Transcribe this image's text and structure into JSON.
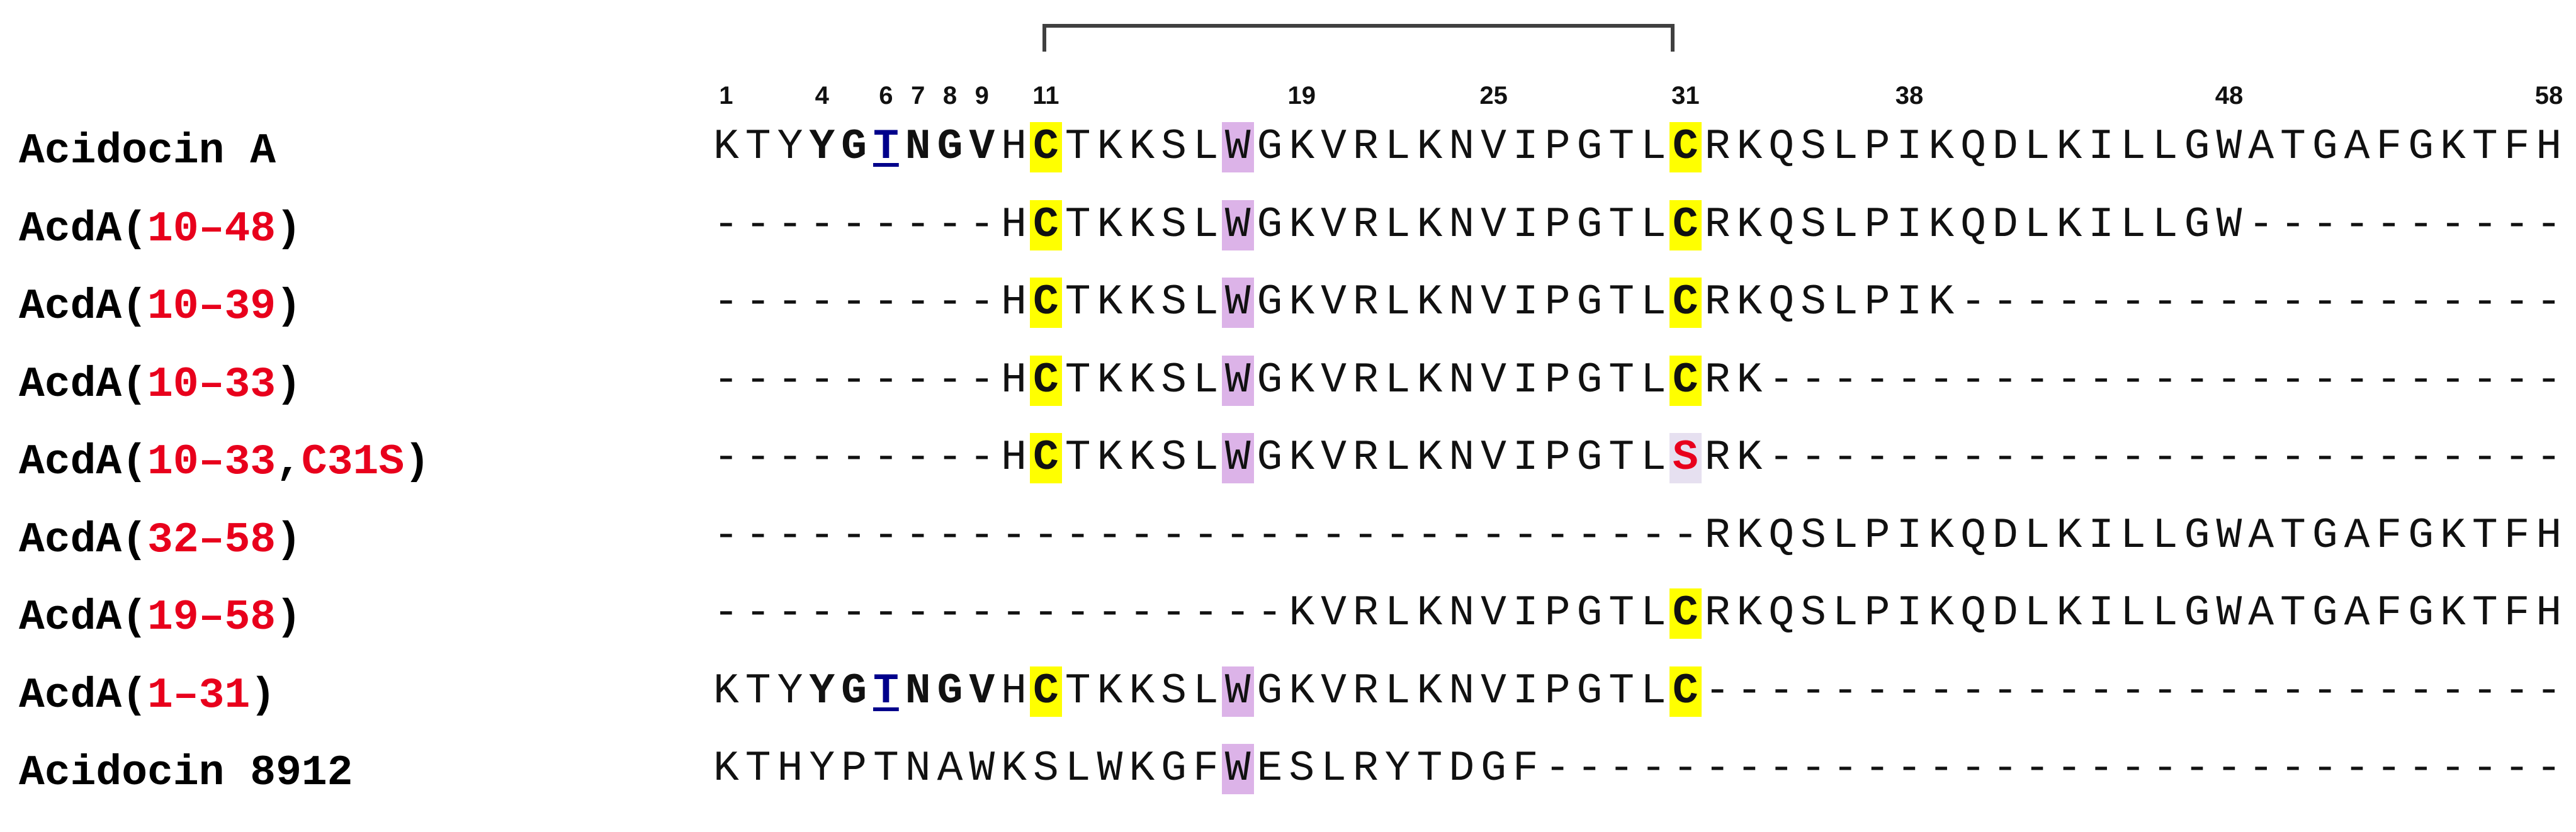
{
  "residue_numbers": [
    "1",
    "4",
    "6",
    "7",
    "8",
    "9",
    "11",
    "19",
    "25",
    "31",
    "38",
    "48",
    "58"
  ],
  "residue_number_positions": [
    1,
    4,
    6,
    7,
    8,
    9,
    11,
    19,
    25,
    31,
    38,
    48,
    58
  ],
  "highlight_colors": {
    "cysteine": "#ffff00",
    "tryptophan": "#dcb3e8",
    "substitution": "#e6e0f0",
    "label_accent": "#e8001c",
    "underlined_residue": "#00008b"
  },
  "rows": [
    {
      "label_parts": [
        {
          "text": "Acidocin A",
          "accent": false
        }
      ],
      "sequence": "KTYYGTNGVHCTKKSLWGKVRLKNVIPGTLCRKQSLPIKQDLKILLGWATGAFGKTFH",
      "marks": {
        "4": "b",
        "5": "b",
        "6": "u",
        "7": "b",
        "8": "b",
        "9": "b",
        "11": "cys",
        "17": "trp",
        "31": "cys"
      }
    },
    {
      "label_parts": [
        {
          "text": "AcdA(",
          "accent": false
        },
        {
          "text": "10–48",
          "accent": true
        },
        {
          "text": ")",
          "accent": false
        }
      ],
      "sequence": "---------HCTKKSLWGKVRLKNVIPGTLCRKQSLPIKQDLKILLGW----------",
      "marks": {
        "11": "cys",
        "17": "trp",
        "31": "cys"
      }
    },
    {
      "label_parts": [
        {
          "text": "AcdA(",
          "accent": false
        },
        {
          "text": "10–39",
          "accent": true
        },
        {
          "text": ")",
          "accent": false
        }
      ],
      "sequence": "---------HCTKKSLWGKVRLKNVIPGTLCRKQSLPIK-------------------",
      "marks": {
        "11": "cys",
        "17": "trp",
        "31": "cys"
      }
    },
    {
      "label_parts": [
        {
          "text": "AcdA(",
          "accent": false
        },
        {
          "text": "10–33",
          "accent": true
        },
        {
          "text": ")",
          "accent": false
        }
      ],
      "sequence": "---------HCTKKSLWGKVRLKNVIPGTLCRK-------------------------",
      "marks": {
        "11": "cys",
        "17": "trp",
        "31": "cys"
      }
    },
    {
      "label_parts": [
        {
          "text": "AcdA(",
          "accent": false
        },
        {
          "text": "10–33",
          "accent": true
        },
        {
          "text": ",",
          "accent": false
        },
        {
          "text": "C31S",
          "accent": true
        },
        {
          "text": ")",
          "accent": false
        }
      ],
      "sequence": "---------HCTKKSLWGKVRLKNVIPGTLSRK-------------------------",
      "marks": {
        "11": "cys",
        "17": "trp",
        "31": "sub"
      }
    },
    {
      "label_parts": [
        {
          "text": "AcdA(",
          "accent": false
        },
        {
          "text": "32–58",
          "accent": true
        },
        {
          "text": ")",
          "accent": false
        }
      ],
      "sequence": "-------------------------------RKQSLPIKQDLKILLGWATGAFGKTFH",
      "marks": {}
    },
    {
      "label_parts": [
        {
          "text": "AcdA(",
          "accent": false
        },
        {
          "text": "19–58",
          "accent": true
        },
        {
          "text": ")",
          "accent": false
        }
      ],
      "sequence": "------------------KVRLKNVIPGTLCRKQSLPIKQDLKILLGWATGAFGKTFH",
      "marks": {
        "31": "cys"
      }
    },
    {
      "label_parts": [
        {
          "text": "AcdA(",
          "accent": false
        },
        {
          "text": "1–31",
          "accent": true
        },
        {
          "text": ")",
          "accent": false
        }
      ],
      "sequence": "KTYYGTNGVHCTKKSLWGKVRLKNVIPGTLC---------------------------",
      "marks": {
        "4": "b",
        "5": "b",
        "6": "u",
        "7": "b",
        "8": "b",
        "9": "b",
        "11": "cys",
        "17": "trp",
        "31": "cys"
      }
    },
    {
      "label_parts": [
        {
          "text": "Acidocin 8912",
          "accent": false
        }
      ],
      "sequence": "KTHYPTNAWKSLWKGFWESLRYTDGF--------------------------------",
      "marks": {
        "17": "trp"
      }
    }
  ]
}
